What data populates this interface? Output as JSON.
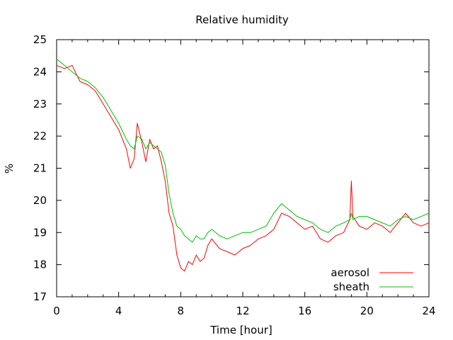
{
  "chart_data": {
    "type": "line",
    "title": "Relative humidity",
    "xlabel": "Time [hour]",
    "ylabel": "%",
    "xlim": [
      0,
      24
    ],
    "ylim": [
      17,
      25
    ],
    "xticks": [
      "0",
      "4",
      "8",
      "12",
      "16",
      "20",
      "24"
    ],
    "yticks": [
      "17",
      "18",
      "19",
      "20",
      "21",
      "22",
      "23",
      "24",
      "25"
    ],
    "grid": false,
    "legend_position": "bottom-right",
    "series": [
      {
        "name": "aerosol",
        "color": "#ff0000",
        "x": [
          0,
          0.5,
          1,
          1.5,
          2,
          2.5,
          3,
          3.5,
          4,
          4.5,
          4.75,
          5,
          5.2,
          5.5,
          5.75,
          6,
          6.25,
          6.5,
          6.75,
          7,
          7.25,
          7.5,
          7.75,
          8,
          8.25,
          8.5,
          8.75,
          9,
          9.25,
          9.5,
          9.75,
          10,
          10.5,
          11,
          11.5,
          12,
          12.5,
          13,
          13.5,
          14,
          14.5,
          15,
          15.5,
          16,
          16.5,
          17,
          17.5,
          18,
          18.5,
          18.9,
          19,
          19.1,
          19.5,
          20,
          20.5,
          21,
          21.5,
          22,
          22.5,
          23,
          23.5,
          24
        ],
        "y": [
          24.2,
          24.1,
          24.2,
          23.7,
          23.6,
          23.4,
          23.0,
          22.6,
          22.2,
          21.6,
          21.0,
          21.3,
          22.4,
          21.8,
          21.2,
          21.9,
          21.6,
          21.7,
          21.2,
          20.6,
          19.6,
          19.2,
          18.3,
          17.9,
          17.8,
          18.1,
          18.0,
          18.3,
          18.1,
          18.2,
          18.6,
          18.8,
          18.5,
          18.4,
          18.3,
          18.5,
          18.6,
          18.8,
          18.9,
          19.1,
          19.6,
          19.5,
          19.3,
          19.1,
          19.2,
          18.8,
          18.7,
          18.9,
          19.0,
          19.4,
          20.6,
          19.5,
          19.2,
          19.1,
          19.3,
          19.2,
          19.0,
          19.3,
          19.6,
          19.3,
          19.2,
          19.3
        ]
      },
      {
        "name": "sheath",
        "color": "#00c000",
        "x": [
          0,
          0.5,
          1,
          1.5,
          2,
          2.5,
          3,
          3.5,
          4,
          4.5,
          4.75,
          5,
          5.2,
          5.5,
          5.75,
          6,
          6.25,
          6.5,
          6.75,
          7,
          7.25,
          7.5,
          7.75,
          8,
          8.25,
          8.5,
          8.75,
          9,
          9.25,
          9.5,
          9.75,
          10,
          10.5,
          11,
          11.5,
          12,
          12.5,
          13,
          13.5,
          14,
          14.5,
          15,
          15.5,
          16,
          16.5,
          17,
          17.5,
          18,
          18.5,
          18.9,
          19,
          19.1,
          19.5,
          20,
          20.5,
          21,
          21.5,
          22,
          22.5,
          23,
          23.5,
          24
        ],
        "y": [
          24.4,
          24.2,
          24.0,
          23.8,
          23.7,
          23.5,
          23.2,
          22.8,
          22.4,
          21.9,
          21.7,
          21.6,
          22.0,
          21.9,
          21.6,
          21.8,
          21.7,
          21.6,
          21.5,
          21.1,
          20.2,
          19.6,
          19.2,
          19.1,
          18.9,
          18.8,
          18.7,
          18.9,
          18.8,
          18.8,
          19.0,
          19.1,
          18.9,
          18.8,
          18.9,
          19.0,
          19.0,
          19.1,
          19.2,
          19.6,
          19.9,
          19.7,
          19.5,
          19.4,
          19.3,
          19.1,
          19.0,
          19.2,
          19.3,
          19.4,
          19.6,
          19.4,
          19.5,
          19.5,
          19.4,
          19.3,
          19.2,
          19.4,
          19.5,
          19.4,
          19.5,
          19.6
        ]
      }
    ]
  }
}
